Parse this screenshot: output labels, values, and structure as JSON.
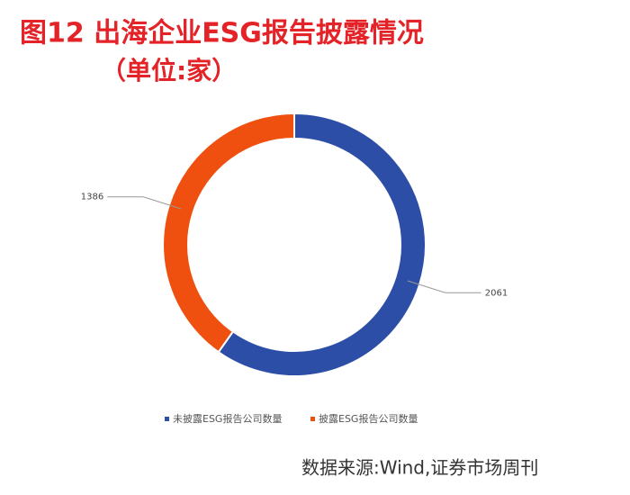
{
  "chart_data": {
    "type": "donut",
    "title": "图12 出海企业ESG报告披露情况",
    "subtitle": "（单位:家）",
    "categories": [
      "未披露ESG报告公司数量",
      "披露ESG报告公司数量"
    ],
    "values": [
      2061,
      1386
    ],
    "colors": [
      "#2d4ea6",
      "#f0500f"
    ],
    "legend": "bottom",
    "source": "数据来源:Wind,证券市场周刊"
  }
}
